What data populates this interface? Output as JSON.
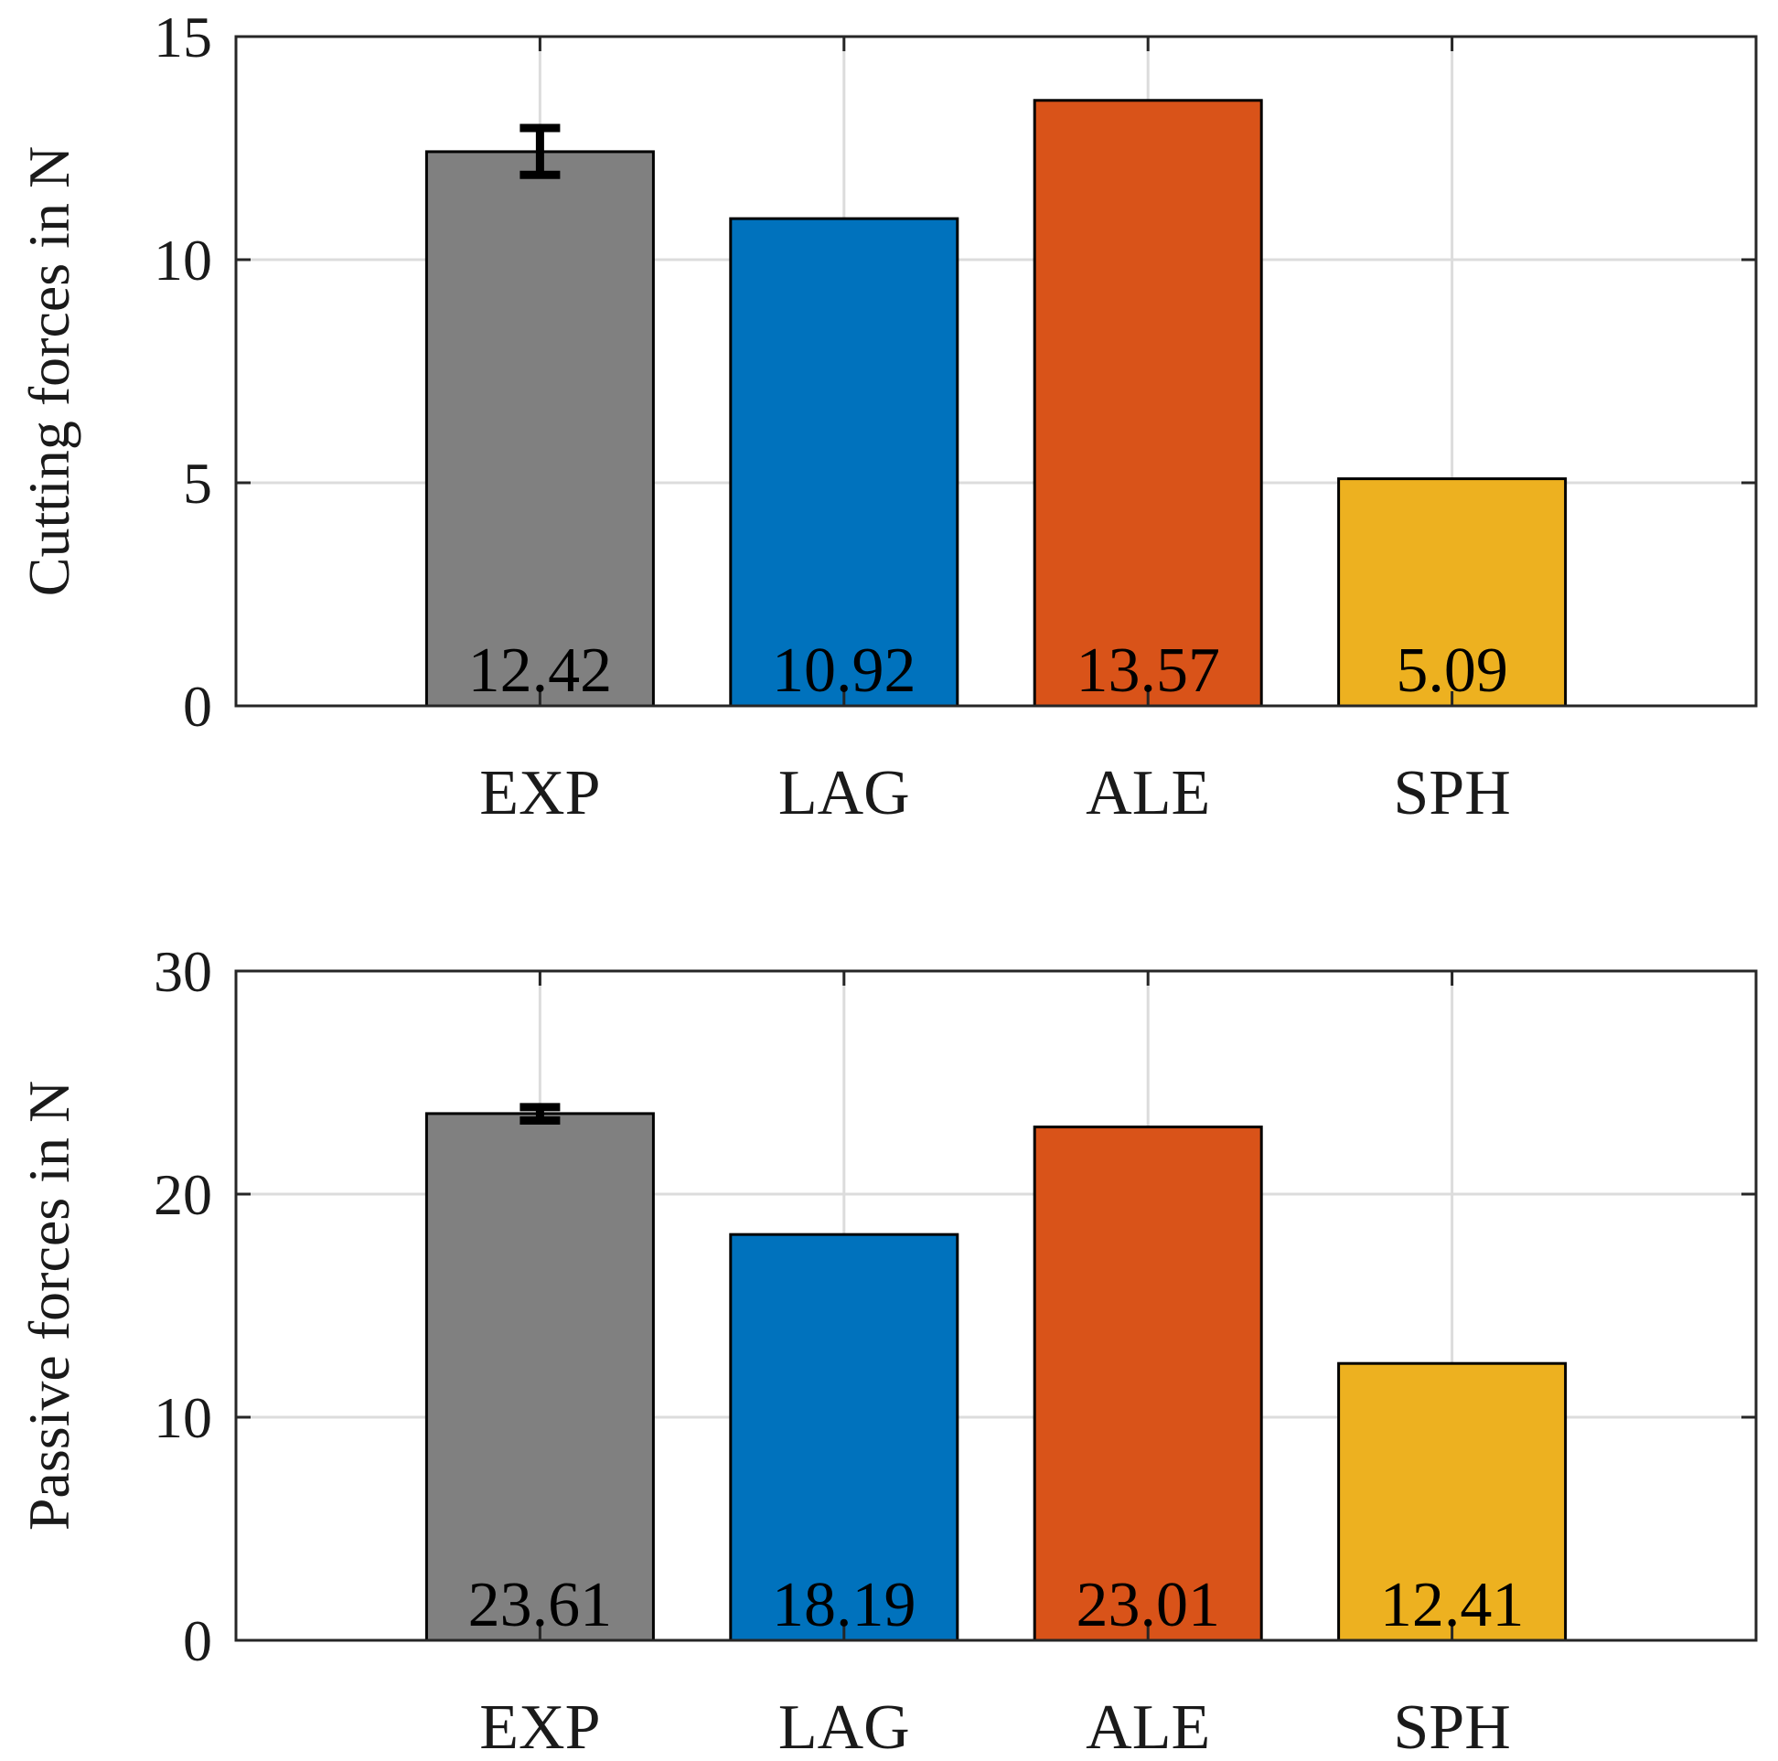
{
  "chart_data": [
    {
      "type": "bar",
      "categories": [
        "EXP",
        "LAG",
        "ALE",
        "SPH"
      ],
      "values": [
        12.42,
        10.92,
        13.57,
        5.09
      ],
      "value_labels": [
        "12.42",
        "10.92",
        "13.57",
        "5.09"
      ],
      "error_bars": [
        {
          "category": "EXP",
          "low": 11.9,
          "high": 12.95
        }
      ],
      "colors": [
        "#808080",
        "#0072BD",
        "#D95319",
        "#EDB120"
      ],
      "ylabel": "Cutting forces in N",
      "xlabel": "",
      "ylim": [
        0,
        15
      ],
      "yticks": [
        0,
        5,
        10,
        15
      ],
      "ytick_labels": [
        "0",
        "5",
        "10",
        "15"
      ],
      "grid": true
    },
    {
      "type": "bar",
      "categories": [
        "EXP",
        "LAG",
        "ALE",
        "SPH"
      ],
      "values": [
        23.61,
        18.19,
        23.01,
        12.41
      ],
      "value_labels": [
        "23.61",
        "18.19",
        "23.01",
        "12.41"
      ],
      "error_bars": [
        {
          "category": "EXP",
          "low": 23.3,
          "high": 23.9
        }
      ],
      "colors": [
        "#808080",
        "#0072BD",
        "#D95319",
        "#EDB120"
      ],
      "ylabel": "Passive forces in N",
      "xlabel": "",
      "ylim": [
        0,
        30
      ],
      "yticks": [
        0,
        10,
        20,
        30
      ],
      "ytick_labels": [
        "0",
        "10",
        "20",
        "30"
      ],
      "grid": true
    }
  ]
}
